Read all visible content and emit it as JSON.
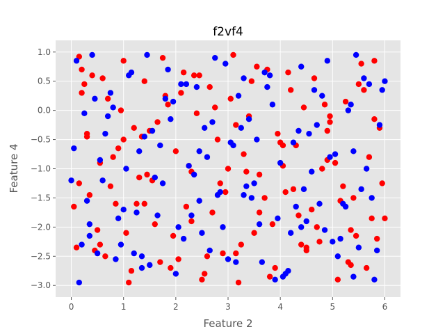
{
  "chart_data": {
    "type": "scatter",
    "title": "f2vf4",
    "xlabel": "Feature 2",
    "ylabel": "Feature 4",
    "xlim": [
      -0.3,
      6.3
    ],
    "ylim": [
      -3.2,
      1.2
    ],
    "xticks": [
      0,
      1,
      2,
      3,
      4,
      5,
      6
    ],
    "yticks": [
      1.0,
      0.5,
      0.0,
      -0.5,
      -1.0,
      -1.5,
      -2.0,
      -2.5,
      -3.0
    ],
    "ytick_labels": [
      "1.0",
      "0.5",
      "0.0",
      "−0.5",
      "−1.0",
      "−1.5",
      "−2.0",
      "−2.5",
      "−3.0"
    ],
    "grid": true,
    "background": "#e5e5e5",
    "series": [
      {
        "color": "#ff0000",
        "x": [
          0.15,
          0.2,
          0.3,
          0.4,
          0.55,
          0.7,
          0.85,
          1.0,
          1.05,
          1.2,
          1.4,
          1.55,
          1.7,
          1.85,
          2.0,
          2.15,
          2.3,
          2.5,
          2.65,
          2.8,
          2.95,
          3.1,
          3.25,
          3.4,
          3.6,
          3.75,
          3.9,
          4.05,
          4.2,
          4.35,
          4.5,
          4.65,
          4.8,
          4.95,
          5.1,
          5.25,
          5.4,
          5.55,
          5.7,
          5.85,
          0.05,
          0.25,
          0.5,
          0.75,
          0.95,
          1.15,
          1.35,
          1.6,
          1.8,
          2.05,
          2.25,
          2.45,
          2.7,
          2.9,
          3.15,
          3.35,
          3.55,
          3.8,
          4.0,
          4.25,
          4.45,
          4.7,
          4.9,
          5.15,
          5.35,
          5.6,
          5.8,
          5.95,
          0.1,
          0.35,
          0.6,
          0.9,
          1.1,
          1.3,
          1.5,
          1.75,
          1.95,
          2.2,
          2.4,
          2.6,
          2.85,
          3.05,
          3.3,
          3.5,
          3.7,
          3.95,
          4.15,
          4.4,
          4.6,
          4.85,
          5.05,
          5.3,
          5.5,
          5.75,
          5.9,
          0.2,
          0.45,
          0.8,
          1.25,
          1.65,
          2.1,
          2.55,
          3.0,
          3.45,
          3.85,
          4.3,
          4.75,
          5.2,
          5.65,
          6.0,
          0.3,
          0.65,
          1.45,
          2.35,
          3.2,
          4.1,
          4.95,
          5.45,
          0.15,
          0.55,
          1.0,
          1.4,
          1.9,
          2.3,
          2.75,
          3.15,
          3.6,
          4.05,
          4.5,
          4.9,
          5.35,
          5.8
        ],
        "y": [
          0.92,
          0.3,
          -0.4,
          0.6,
          -0.9,
          0.2,
          -1.6,
          0.85,
          -2.1,
          -0.3,
          0.5,
          -1.2,
          -2.6,
          0.1,
          -0.7,
          0.65,
          -1.9,
          -2.9,
          0.4,
          -0.5,
          -1.4,
          0.95,
          -2.3,
          -0.1,
          -1.1,
          0.7,
          -2.7,
          -0.6,
          0.35,
          -1.8,
          -2.4,
          0.55,
          -1.0,
          -0.2,
          -2.9,
          0.15,
          -1.5,
          0.8,
          -0.8,
          -2.2,
          -1.65,
          0.45,
          -2.05,
          -1.3,
          0.0,
          -2.75,
          -0.45,
          -1.95,
          0.25,
          -2.55,
          -0.95,
          0.6,
          -1.75,
          -2.45,
          -0.25,
          -1.05,
          0.75,
          -2.85,
          -0.55,
          -1.35,
          0.05,
          -2.0,
          -0.85,
          -1.55,
          -2.65,
          0.35,
          -0.15,
          -1.25,
          -2.35,
          -1.45,
          0.55,
          -0.65,
          -2.95,
          -1.15,
          -0.35,
          0.9,
          -2.15,
          -1.65,
          -0.05,
          -2.5,
          -1.25,
          0.2,
          -0.75,
          -2.1,
          -1.5,
          -0.4,
          0.65,
          -2.3,
          -1.7,
          0.1,
          -0.9,
          -2.6,
          0.45,
          -1.85,
          -0.3,
          0.7,
          -2.4,
          -0.8,
          -1.6,
          -0.2,
          0.3,
          -2.8,
          -1.0,
          0.5,
          -1.95,
          -0.6,
          -2.25,
          -1.3,
          -2.7,
          -1.85,
          -0.45,
          -2.5,
          -1.1,
          0.6,
          -2.95,
          -1.4,
          -0.1,
          -2.15,
          -1.25,
          -2.3,
          -0.5,
          -1.6,
          -2.7,
          -1.05,
          0.05,
          -2.45,
          -1.75,
          -0.95,
          -2.35,
          -0.35,
          -2.05,
          0.85
        ]
      },
      {
        "color": "#0000ff",
        "x": [
          0.1,
          0.25,
          0.4,
          0.6,
          0.75,
          0.95,
          1.1,
          1.3,
          1.45,
          1.65,
          1.8,
          2.0,
          2.2,
          2.35,
          2.55,
          2.75,
          2.9,
          3.1,
          3.3,
          3.45,
          3.65,
          3.85,
          4.0,
          4.2,
          4.4,
          4.55,
          4.75,
          4.9,
          5.1,
          5.3,
          5.45,
          5.65,
          5.8,
          6.0,
          0.05,
          0.3,
          0.5,
          0.7,
          0.9,
          1.15,
          1.35,
          1.55,
          1.75,
          1.95,
          2.15,
          2.4,
          2.6,
          2.8,
          3.0,
          3.2,
          3.4,
          3.6,
          3.8,
          4.05,
          4.25,
          4.45,
          4.65,
          4.85,
          5.05,
          5.25,
          5.5,
          5.7,
          5.9,
          0.15,
          0.35,
          0.55,
          0.8,
          1.0,
          1.2,
          1.4,
          1.6,
          1.85,
          2.05,
          2.25,
          2.45,
          2.7,
          2.95,
          3.15,
          3.35,
          3.55,
          3.75,
          3.95,
          4.15,
          4.35,
          4.6,
          4.8,
          5.0,
          5.2,
          5.4,
          5.6,
          5.85,
          0.0,
          0.45,
          0.85,
          1.25,
          1.7,
          2.1,
          2.5,
          2.85,
          3.25,
          3.7,
          4.1,
          4.5,
          4.95,
          5.35,
          5.75,
          0.2,
          0.65,
          1.05,
          1.5,
          1.9,
          2.3,
          2.65,
          3.05,
          3.5,
          3.9,
          4.3,
          4.7,
          5.15,
          5.55,
          5.95,
          0.35,
          1.35,
          2.45,
          3.3,
          4.4,
          5.4
        ],
        "y": [
          0.85,
          -0.05,
          0.95,
          -1.2,
          0.3,
          -2.3,
          0.6,
          -0.7,
          0.95,
          -1.8,
          0.2,
          -2.8,
          0.45,
          -1.1,
          -0.3,
          0.9,
          -2.0,
          -0.6,
          0.55,
          -1.5,
          -2.6,
          0.1,
          -0.9,
          -2.1,
          0.75,
          -0.4,
          -1.6,
          0.85,
          -2.5,
          0.0,
          0.95,
          -1.0,
          -2.9,
          0.5,
          -0.65,
          -1.55,
          -2.45,
          -0.1,
          -1.85,
          0.65,
          -2.7,
          -0.35,
          -1.25,
          0.15,
          -2.2,
          0.4,
          -0.8,
          -1.45,
          -2.55,
          0.25,
          -0.15,
          -1.95,
          0.6,
          -2.85,
          -0.55,
          -1.35,
          0.35,
          -2.05,
          -0.75,
          -1.65,
          -2.35,
          0.45,
          -0.25,
          -2.95,
          -2.15,
          -0.85,
          0.05,
          -1.7,
          -2.45,
          -0.45,
          -1.15,
          0.7,
          -2.0,
          -0.95,
          -1.55,
          -0.2,
          0.8,
          -2.6,
          -1.3,
          -0.5,
          0.4,
          -1.85,
          -2.75,
          -0.35,
          -1.05,
          0.25,
          -2.25,
          -1.6,
          -0.7,
          0.55,
          -2.4,
          -1.2,
          0.2,
          -2.55,
          -1.75,
          -0.6,
          0.45,
          -2.1,
          -1.4,
          -0.3,
          0.65,
          -2.8,
          -1.9,
          -0.8,
          0.1,
          -1.5,
          -2.3,
          -0.4,
          -1.0,
          -2.65,
          -0.15,
          -1.8,
          -2.4,
          -0.55,
          -1.25,
          -2.9,
          -1.65,
          -0.25,
          -2.2,
          -1.35,
          0.35,
          -1.95,
          -2.5,
          -0.7,
          -1.45,
          -2.0,
          -2.85
        ]
      }
    ]
  }
}
